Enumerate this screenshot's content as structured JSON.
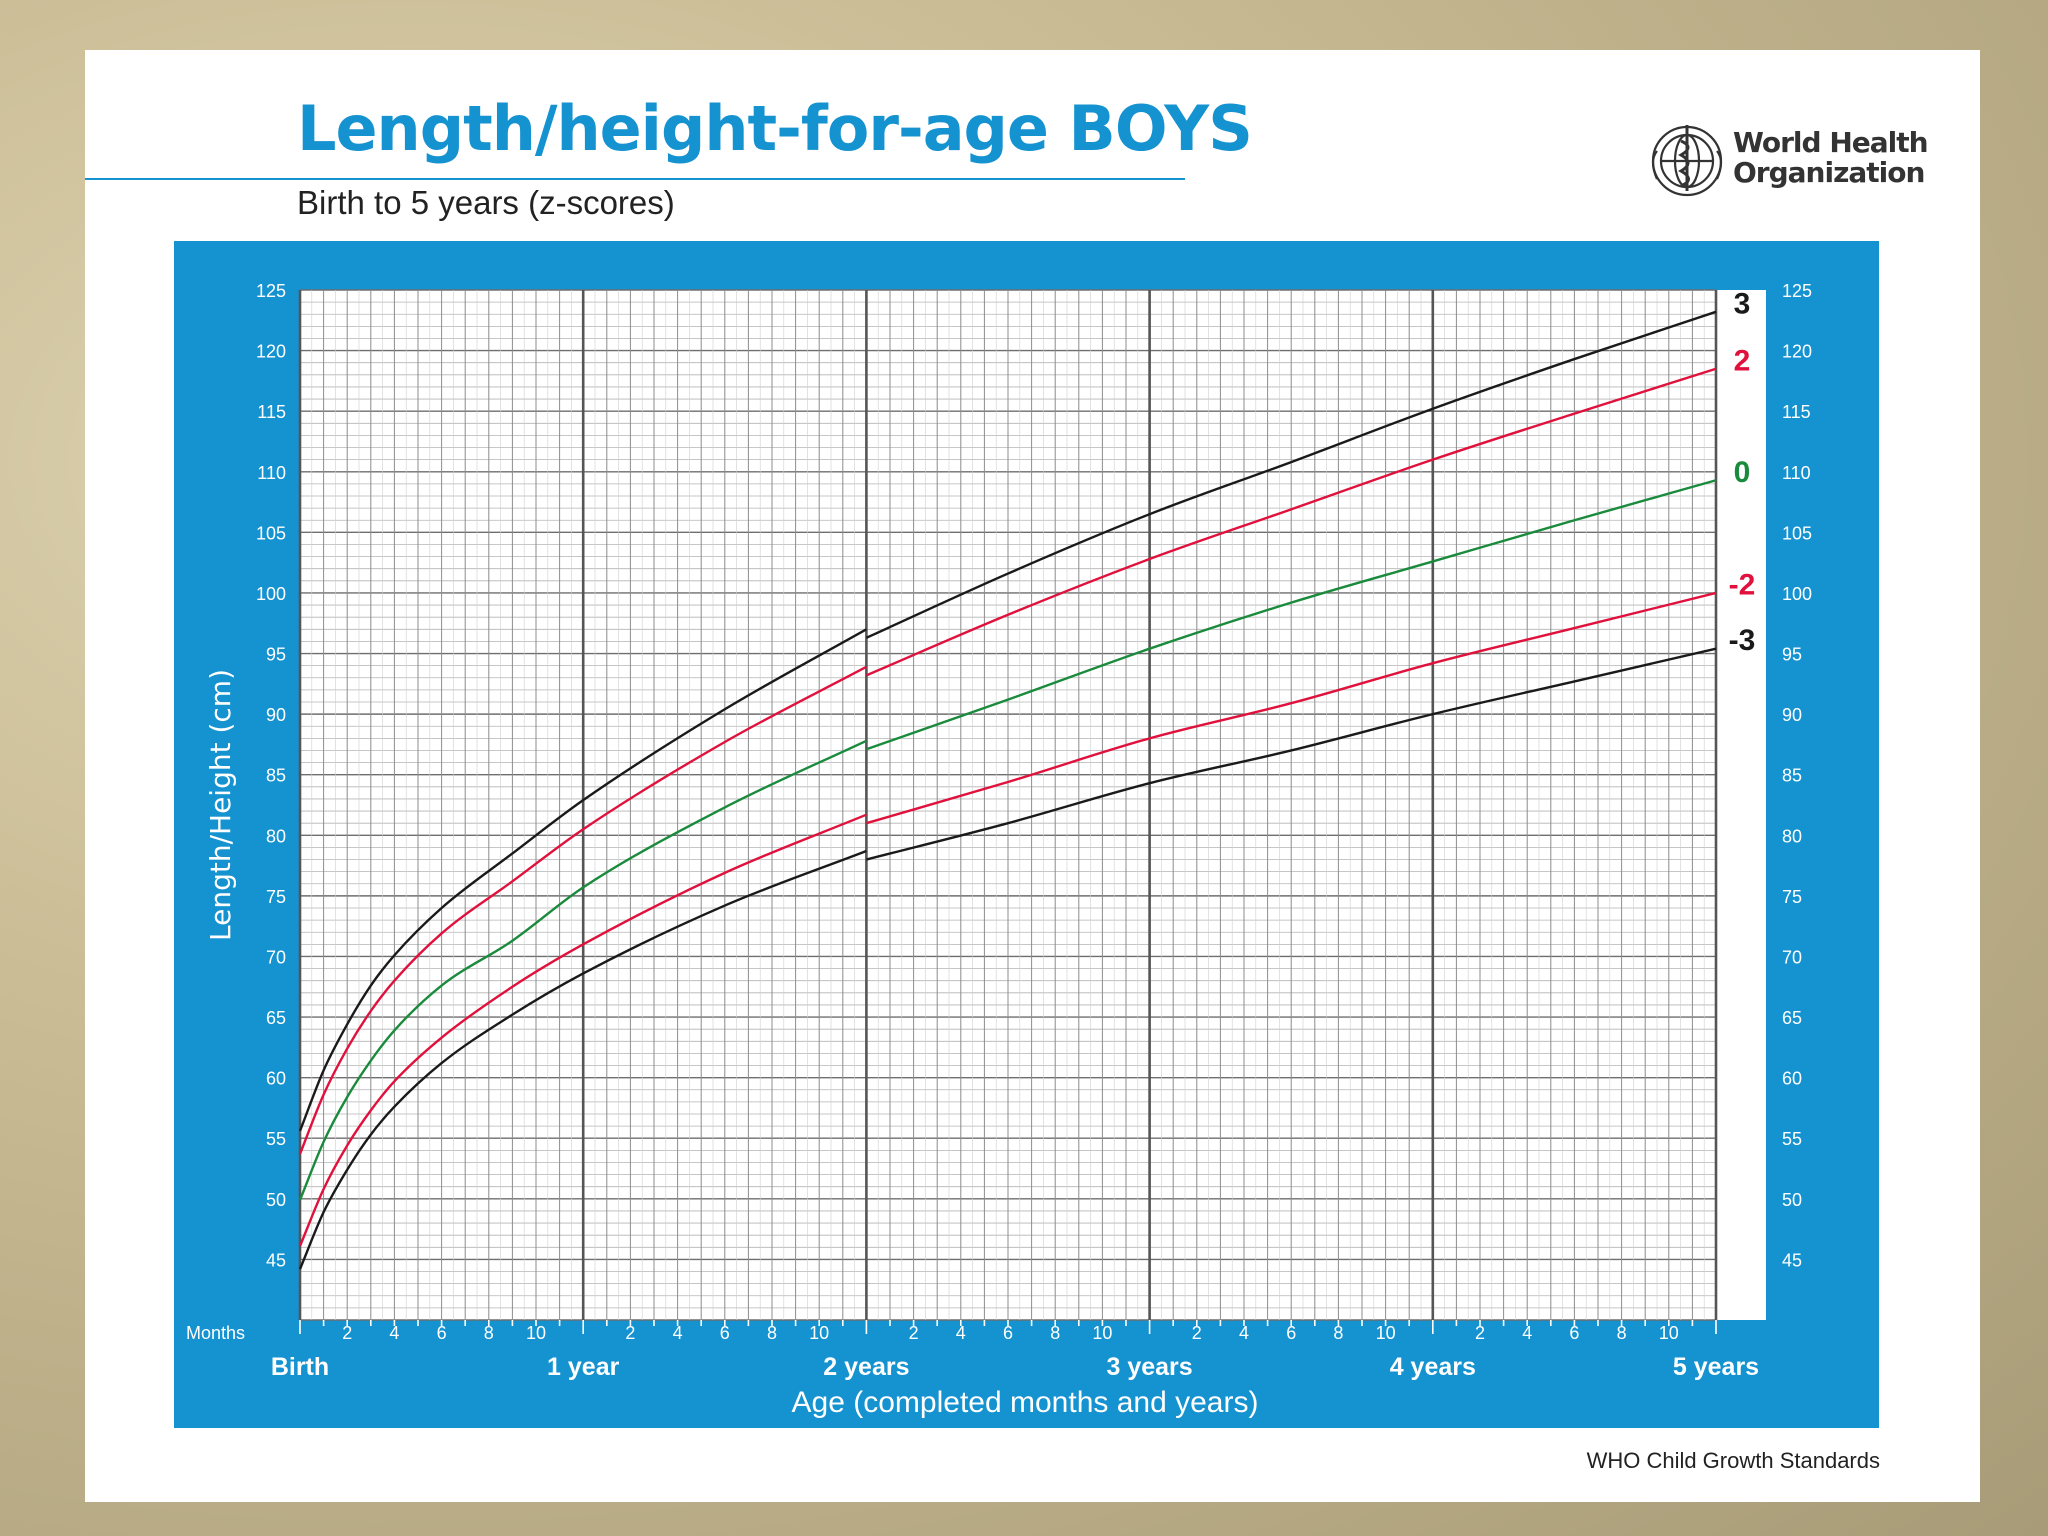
{
  "page": {
    "title": "Length/height-for-age BOYS",
    "subtitle": "Birth to 5 years (z-scores)",
    "org_line1": "World Health",
    "org_line2": "Organization",
    "footer": "WHO Child Growth Standards"
  },
  "colors": {
    "panel": "#1592d0",
    "black": "#1a1a1a",
    "red": "#e0113c",
    "green": "#1a8a3c"
  },
  "chart_data": {
    "type": "line",
    "title": "Length/height-for-age BOYS",
    "xlabel": "Age (completed months and years)",
    "ylabel": "Length/Height (cm)",
    "x_unit_label": "Months",
    "xlim": [
      0,
      60
    ],
    "ylim": [
      40,
      125
    ],
    "y_ticks": [
      45,
      50,
      55,
      60,
      65,
      70,
      75,
      80,
      85,
      90,
      95,
      100,
      105,
      110,
      115,
      120,
      125
    ],
    "year_labels": [
      "Birth",
      "1 year",
      "2 years",
      "3 years",
      "4 years",
      "5 years"
    ],
    "month_labels": [
      "2",
      "4",
      "6",
      "8",
      "10"
    ],
    "x": [
      0,
      1,
      2,
      3,
      4,
      6,
      9,
      12,
      18,
      24,
      30,
      36,
      42,
      48,
      54,
      60
    ],
    "series": [
      {
        "name": "3",
        "color": "#1a1a1a",
        "values": [
          55.6,
          60.6,
          64.4,
          67.6,
          70.1,
          74.0,
          78.5,
          82.9,
          90.4,
          97.0,
          102.3,
          107.2,
          111.5,
          115.9,
          120.0,
          123.9
        ]
      },
      {
        "name": "2",
        "color": "#e0113c",
        "values": [
          53.7,
          58.6,
          62.4,
          65.5,
          68.0,
          71.9,
          76.2,
          80.5,
          87.7,
          93.9,
          98.9,
          103.5,
          107.6,
          111.7,
          115.5,
          119.2
        ]
      },
      {
        "name": "0",
        "color": "#1a8a3c",
        "values": [
          49.9,
          54.7,
          58.4,
          61.4,
          63.9,
          67.6,
          71.3,
          75.7,
          82.3,
          87.8,
          91.9,
          96.1,
          99.9,
          103.3,
          106.7,
          110.0
        ]
      },
      {
        "name": "-2",
        "color": "#e0113c",
        "values": [
          46.1,
          50.8,
          54.4,
          57.3,
          59.7,
          63.3,
          67.5,
          71.0,
          76.9,
          81.7,
          85.1,
          88.7,
          91.6,
          94.9,
          97.8,
          100.7
        ]
      },
      {
        "name": "-3",
        "color": "#1a1a1a",
        "values": [
          44.2,
          48.9,
          52.4,
          55.3,
          57.6,
          61.2,
          65.2,
          68.6,
          74.2,
          78.7,
          81.7,
          85.0,
          87.7,
          90.7,
          93.4,
          96.1
        ]
      }
    ],
    "discontinuity_at": 24,
    "grid": true
  }
}
